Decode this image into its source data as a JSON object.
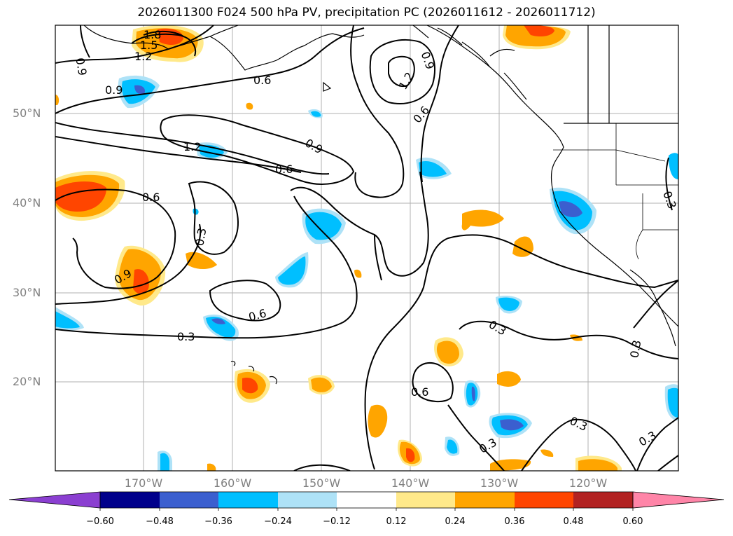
{
  "title": "2026011300 F024 500 hPa PV, precipitation PC (2026011612 - 2026011712)",
  "lat_labels": [
    "50°N",
    "40°N",
    "30°N",
    "20°N"
  ],
  "lon_labels": [
    "170°W",
    "160°W",
    "150°W",
    "140°W",
    "130°W",
    "120°W"
  ],
  "contour_labels": [
    "1.8",
    "1.5",
    "1.2",
    "0.9",
    "0.9",
    "0.6",
    "0.9",
    "1.2",
    "0.6",
    "1.2",
    "0.9",
    "0.6",
    "0.6",
    "0.3",
    "0.9",
    "0.6",
    "0.3",
    "0.3",
    "0.6",
    "0.3",
    "0.3",
    "0.3",
    "0.3",
    "0.3"
  ],
  "colorbar": {
    "ticks": [
      "−0.60",
      "−0.48",
      "−0.36",
      "−0.24",
      "−0.12",
      "0.12",
      "0.24",
      "0.36",
      "0.48",
      "0.60"
    ],
    "colors": [
      "#8b3fd1",
      "#00008b",
      "#3b5fcf",
      "#00bfff",
      "#aee2f7",
      "#ffffff",
      "#ffe98a",
      "#ffa500",
      "#ff4500",
      "#b22222",
      "#ff85a8"
    ]
  },
  "colors": {
    "light_blue": "#aee2f7",
    "sky_blue": "#00bfff",
    "royal_blue": "#3b5fcf",
    "khaki": "#ffe98a",
    "orange": "#ffa500",
    "orange_red": "#ff4500"
  }
}
